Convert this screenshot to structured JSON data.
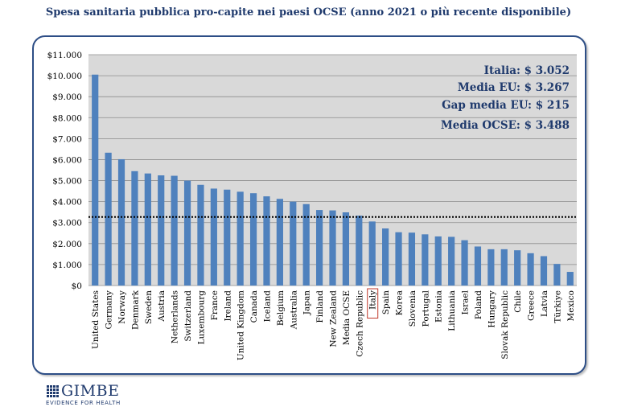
{
  "chart_data": {
    "type": "bar",
    "title": "Spesa sanitaria pubblica pro-capite nei paesi OCSE (anno 2021 o più recente disponibile)",
    "categories": [
      "United States",
      "Germany",
      "Norway",
      "Denmark",
      "Sweden",
      "Austria",
      "Netherlands",
      "Switzerland",
      "Luxembourg",
      "France",
      "Ireland",
      "United Kingdom",
      "Canada",
      "Iceland",
      "Belgium",
      "Australia",
      "Japan",
      "Finland",
      "New Zealand",
      "Media OCSE",
      "Czech Republic",
      "Italy",
      "Spain",
      "Korea",
      "Slovenia",
      "Portugal",
      "Estonia",
      "Lithuania",
      "Israel",
      "Poland",
      "Hungary",
      "Slovak Republic",
      "Chile",
      "Greece",
      "Latvia",
      "Türkiye",
      "Mexico"
    ],
    "values": [
      10050,
      6330,
      6020,
      5450,
      5340,
      5250,
      5230,
      5000,
      4800,
      4620,
      4570,
      4470,
      4400,
      4250,
      4130,
      4000,
      3880,
      3600,
      3580,
      3488,
      3330,
      3052,
      2720,
      2540,
      2520,
      2440,
      2340,
      2320,
      2160,
      1860,
      1730,
      1730,
      1680,
      1540,
      1400,
      1030,
      650
    ],
    "highlight_category": "Italy",
    "reference_line": {
      "value": 3267,
      "style": "dotted"
    },
    "ylim": [
      0,
      11000
    ],
    "y_ticks": [
      "$0",
      "$1.000",
      "$2.000",
      "$3.000",
      "$4.000",
      "$5.000",
      "$6.000",
      "$7.000",
      "$8.000",
      "$9.000",
      "$10.000",
      "$11.000"
    ],
    "grid": true,
    "bar_color": "#4f81bd",
    "plot_background": "#d9d9d9",
    "annotations": [
      "Italia: $ 3.052",
      "Media EU: $ 3.267",
      "Gap media EU: $ 215",
      "Media OCSE: $ 3.488"
    ],
    "xlabel": "",
    "ylabel": ""
  },
  "brand": {
    "name": "GIMBE",
    "tagline": "EVIDENCE FOR HEALTH"
  }
}
